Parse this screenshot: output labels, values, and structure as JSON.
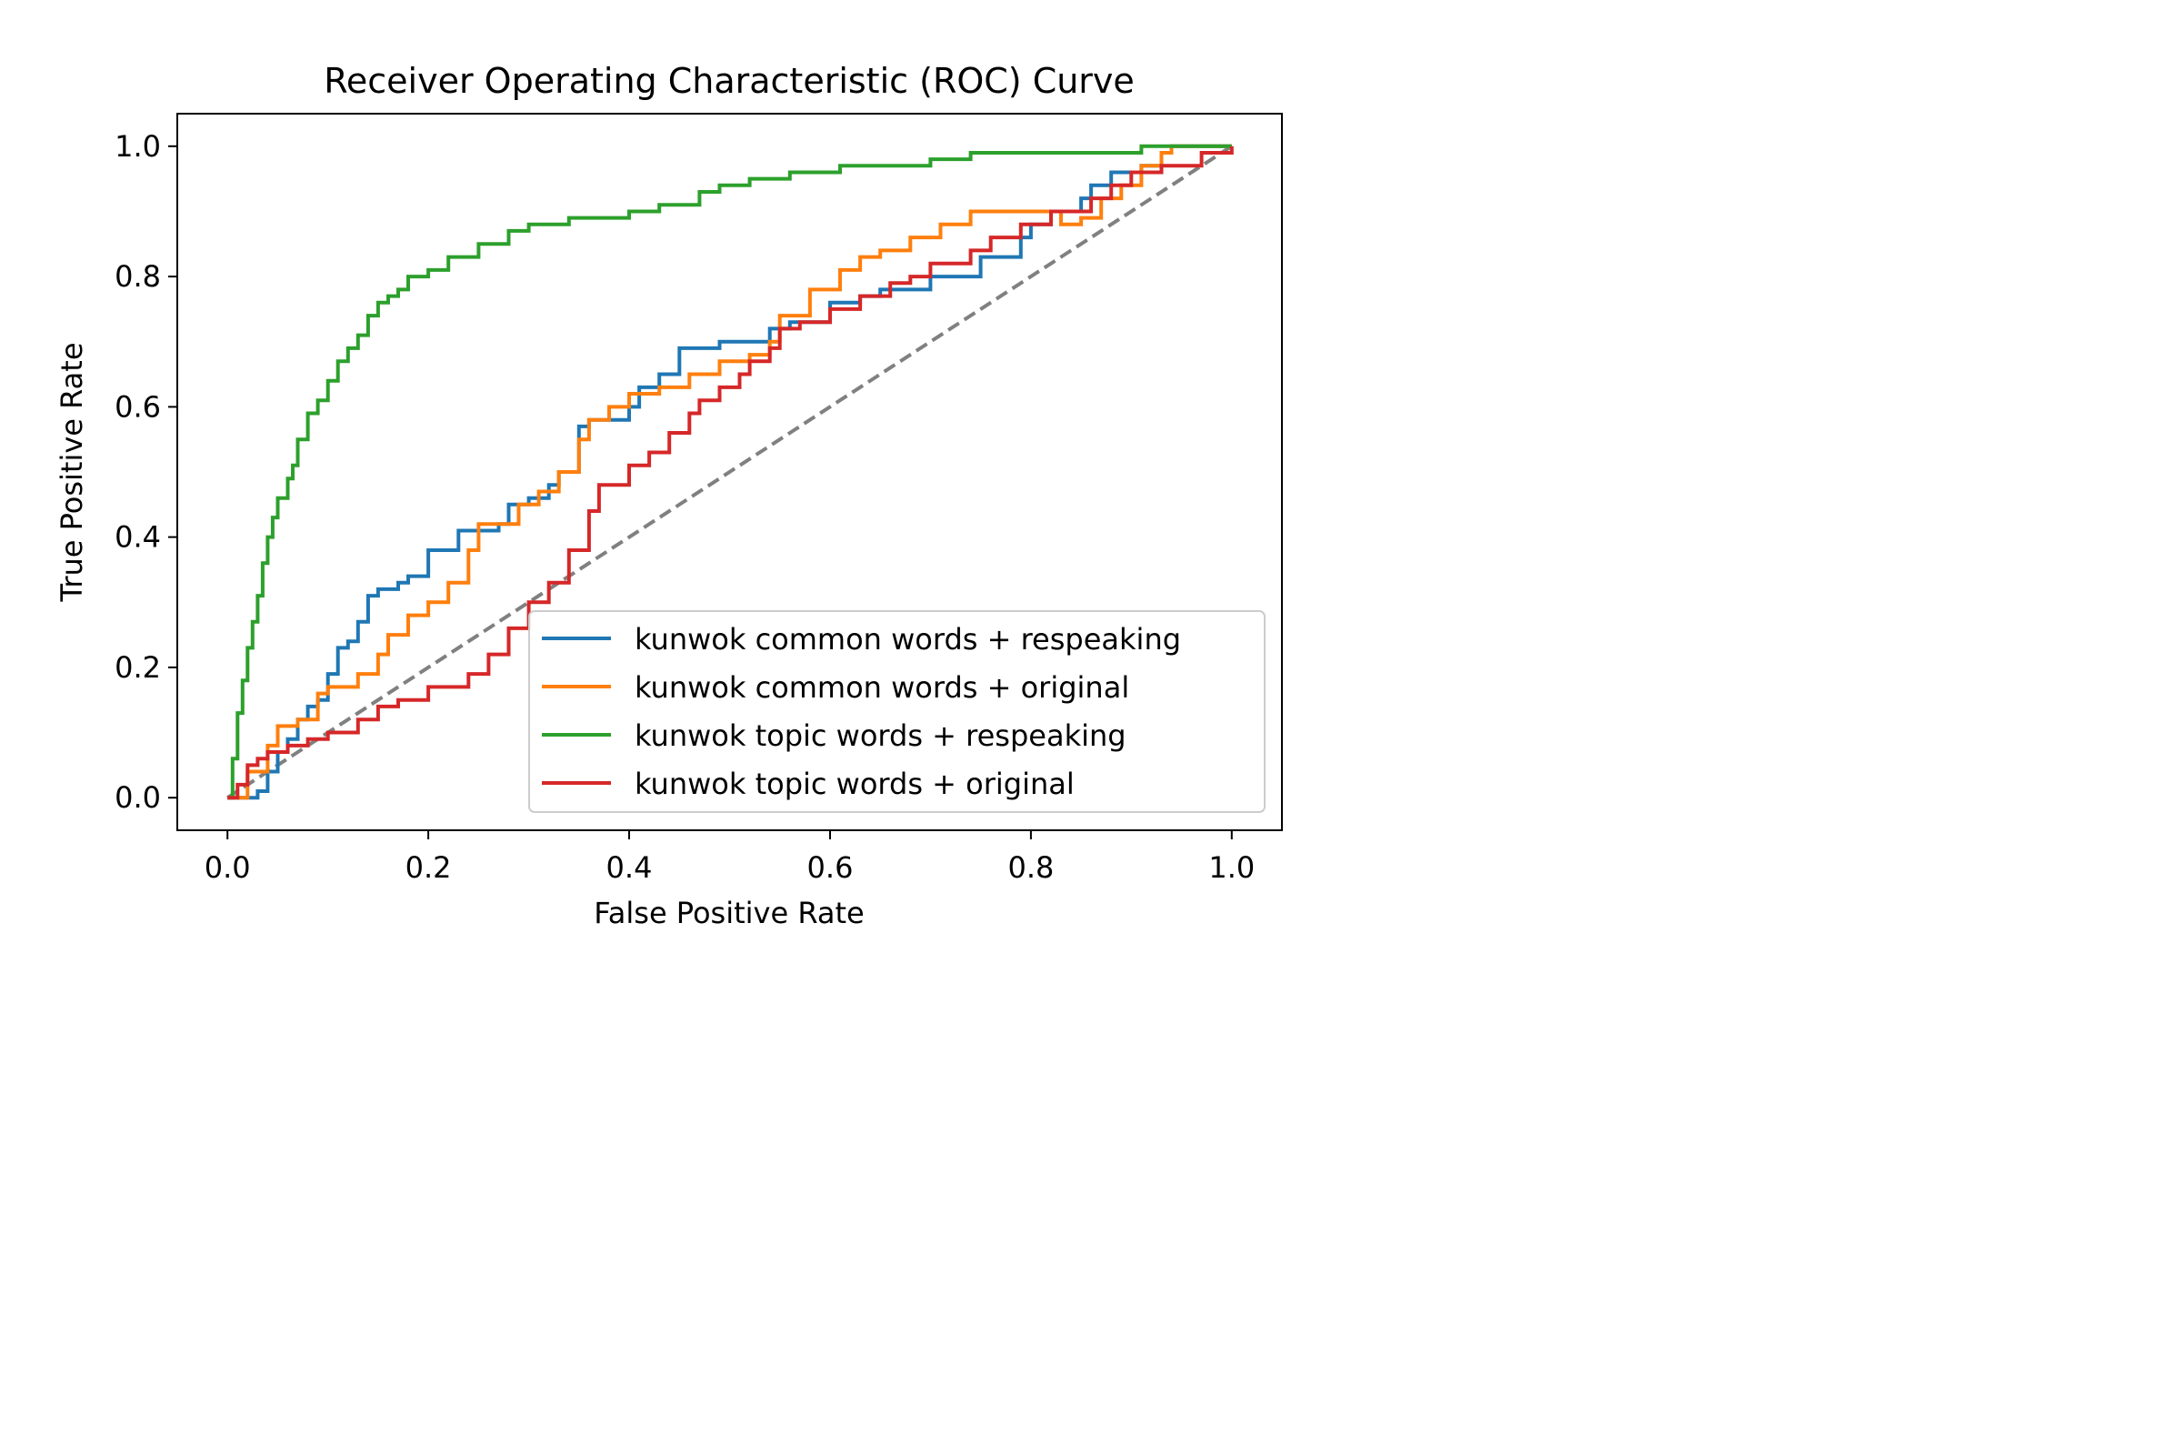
{
  "chart_data": {
    "type": "line",
    "title": "Receiver Operating Characteristic (ROC) Curve",
    "xlabel": "False Positive Rate",
    "ylabel": "True Positive Rate",
    "xlim": [
      -0.05,
      1.05
    ],
    "ylim": [
      -0.05,
      1.05
    ],
    "xticks": [
      0.0,
      0.2,
      0.4,
      0.6,
      0.8,
      1.0
    ],
    "yticks": [
      0.0,
      0.2,
      0.4,
      0.6,
      0.8,
      1.0
    ],
    "xtick_labels": [
      "0.0",
      "0.2",
      "0.4",
      "0.6",
      "0.8",
      "1.0"
    ],
    "ytick_labels": [
      "0.0",
      "0.2",
      "0.4",
      "0.6",
      "0.8",
      "1.0"
    ],
    "grid": false,
    "legend_position": "lower-right",
    "diagonal": {
      "points": [
        [
          0,
          0
        ],
        [
          1,
          1
        ]
      ],
      "color": "#808080",
      "style": "dashed"
    },
    "series": [
      {
        "name": "kunwok common words + respeaking",
        "color": "#1f77b4",
        "points": [
          [
            0.0,
            0.0
          ],
          [
            0.03,
            0.01
          ],
          [
            0.04,
            0.04
          ],
          [
            0.05,
            0.07
          ],
          [
            0.06,
            0.09
          ],
          [
            0.07,
            0.12
          ],
          [
            0.08,
            0.14
          ],
          [
            0.09,
            0.15
          ],
          [
            0.1,
            0.19
          ],
          [
            0.11,
            0.23
          ],
          [
            0.12,
            0.24
          ],
          [
            0.13,
            0.27
          ],
          [
            0.14,
            0.31
          ],
          [
            0.15,
            0.32
          ],
          [
            0.17,
            0.33
          ],
          [
            0.18,
            0.34
          ],
          [
            0.2,
            0.38
          ],
          [
            0.23,
            0.41
          ],
          [
            0.27,
            0.42
          ],
          [
            0.28,
            0.45
          ],
          [
            0.3,
            0.46
          ],
          [
            0.32,
            0.48
          ],
          [
            0.33,
            0.5
          ],
          [
            0.35,
            0.57
          ],
          [
            0.36,
            0.58
          ],
          [
            0.4,
            0.6
          ],
          [
            0.41,
            0.63
          ],
          [
            0.43,
            0.65
          ],
          [
            0.45,
            0.69
          ],
          [
            0.49,
            0.7
          ],
          [
            0.54,
            0.72
          ],
          [
            0.56,
            0.73
          ],
          [
            0.6,
            0.76
          ],
          [
            0.63,
            0.77
          ],
          [
            0.65,
            0.78
          ],
          [
            0.7,
            0.8
          ],
          [
            0.75,
            0.83
          ],
          [
            0.79,
            0.86
          ],
          [
            0.8,
            0.88
          ],
          [
            0.82,
            0.9
          ],
          [
            0.85,
            0.92
          ],
          [
            0.86,
            0.94
          ],
          [
            0.88,
            0.96
          ],
          [
            0.91,
            0.97
          ],
          [
            0.93,
            0.99
          ],
          [
            0.94,
            1.0
          ],
          [
            1.0,
            1.0
          ]
        ]
      },
      {
        "name": "kunwok common words + original",
        "color": "#ff7f0e",
        "points": [
          [
            0.0,
            0.0
          ],
          [
            0.02,
            0.04
          ],
          [
            0.04,
            0.08
          ],
          [
            0.05,
            0.11
          ],
          [
            0.07,
            0.12
          ],
          [
            0.09,
            0.16
          ],
          [
            0.1,
            0.17
          ],
          [
            0.13,
            0.19
          ],
          [
            0.15,
            0.22
          ],
          [
            0.16,
            0.25
          ],
          [
            0.18,
            0.28
          ],
          [
            0.2,
            0.3
          ],
          [
            0.22,
            0.33
          ],
          [
            0.24,
            0.38
          ],
          [
            0.25,
            0.42
          ],
          [
            0.29,
            0.45
          ],
          [
            0.31,
            0.47
          ],
          [
            0.33,
            0.5
          ],
          [
            0.35,
            0.55
          ],
          [
            0.36,
            0.58
          ],
          [
            0.38,
            0.6
          ],
          [
            0.4,
            0.62
          ],
          [
            0.43,
            0.63
          ],
          [
            0.46,
            0.65
          ],
          [
            0.49,
            0.67
          ],
          [
            0.52,
            0.68
          ],
          [
            0.54,
            0.7
          ],
          [
            0.55,
            0.74
          ],
          [
            0.58,
            0.78
          ],
          [
            0.61,
            0.81
          ],
          [
            0.63,
            0.83
          ],
          [
            0.65,
            0.84
          ],
          [
            0.68,
            0.86
          ],
          [
            0.71,
            0.88
          ],
          [
            0.74,
            0.9
          ],
          [
            0.8,
            0.9
          ],
          [
            0.83,
            0.88
          ],
          [
            0.85,
            0.89
          ],
          [
            0.87,
            0.92
          ],
          [
            0.89,
            0.94
          ],
          [
            0.91,
            0.97
          ],
          [
            0.93,
            0.99
          ],
          [
            0.94,
            1.0
          ],
          [
            1.0,
            1.0
          ]
        ]
      },
      {
        "name": "kunwok topic words + respeaking",
        "color": "#2ca02c",
        "points": [
          [
            0.0,
            0.0
          ],
          [
            0.005,
            0.06
          ],
          [
            0.01,
            0.13
          ],
          [
            0.015,
            0.18
          ],
          [
            0.02,
            0.23
          ],
          [
            0.025,
            0.27
          ],
          [
            0.03,
            0.31
          ],
          [
            0.035,
            0.36
          ],
          [
            0.04,
            0.4
          ],
          [
            0.045,
            0.43
          ],
          [
            0.05,
            0.46
          ],
          [
            0.06,
            0.49
          ],
          [
            0.065,
            0.51
          ],
          [
            0.07,
            0.55
          ],
          [
            0.08,
            0.59
          ],
          [
            0.09,
            0.61
          ],
          [
            0.1,
            0.64
          ],
          [
            0.11,
            0.67
          ],
          [
            0.12,
            0.69
          ],
          [
            0.13,
            0.71
          ],
          [
            0.14,
            0.74
          ],
          [
            0.15,
            0.76
          ],
          [
            0.16,
            0.77
          ],
          [
            0.17,
            0.78
          ],
          [
            0.18,
            0.8
          ],
          [
            0.2,
            0.81
          ],
          [
            0.22,
            0.83
          ],
          [
            0.25,
            0.85
          ],
          [
            0.28,
            0.87
          ],
          [
            0.3,
            0.88
          ],
          [
            0.34,
            0.89
          ],
          [
            0.4,
            0.9
          ],
          [
            0.43,
            0.91
          ],
          [
            0.47,
            0.93
          ],
          [
            0.49,
            0.94
          ],
          [
            0.52,
            0.95
          ],
          [
            0.56,
            0.96
          ],
          [
            0.61,
            0.97
          ],
          [
            0.7,
            0.98
          ],
          [
            0.74,
            0.99
          ],
          [
            0.91,
            1.0
          ],
          [
            1.0,
            1.0
          ]
        ]
      },
      {
        "name": "kunwok topic words + original",
        "color": "#d62728",
        "points": [
          [
            0.0,
            0.0
          ],
          [
            0.01,
            0.02
          ],
          [
            0.02,
            0.05
          ],
          [
            0.03,
            0.06
          ],
          [
            0.04,
            0.07
          ],
          [
            0.06,
            0.08
          ],
          [
            0.08,
            0.09
          ],
          [
            0.1,
            0.1
          ],
          [
            0.13,
            0.12
          ],
          [
            0.15,
            0.14
          ],
          [
            0.17,
            0.15
          ],
          [
            0.2,
            0.17
          ],
          [
            0.24,
            0.19
          ],
          [
            0.26,
            0.22
          ],
          [
            0.28,
            0.26
          ],
          [
            0.3,
            0.3
          ],
          [
            0.32,
            0.33
          ],
          [
            0.34,
            0.38
          ],
          [
            0.36,
            0.44
          ],
          [
            0.37,
            0.48
          ],
          [
            0.4,
            0.51
          ],
          [
            0.42,
            0.53
          ],
          [
            0.44,
            0.56
          ],
          [
            0.46,
            0.59
          ],
          [
            0.47,
            0.61
          ],
          [
            0.49,
            0.63
          ],
          [
            0.51,
            0.65
          ],
          [
            0.52,
            0.67
          ],
          [
            0.54,
            0.69
          ],
          [
            0.55,
            0.72
          ],
          [
            0.57,
            0.73
          ],
          [
            0.6,
            0.75
          ],
          [
            0.63,
            0.77
          ],
          [
            0.66,
            0.79
          ],
          [
            0.68,
            0.8
          ],
          [
            0.7,
            0.82
          ],
          [
            0.74,
            0.84
          ],
          [
            0.76,
            0.86
          ],
          [
            0.79,
            0.88
          ],
          [
            0.82,
            0.9
          ],
          [
            0.86,
            0.92
          ],
          [
            0.88,
            0.94
          ],
          [
            0.9,
            0.96
          ],
          [
            0.93,
            0.97
          ],
          [
            0.97,
            0.99
          ],
          [
            1.0,
            1.0
          ]
        ]
      }
    ]
  }
}
